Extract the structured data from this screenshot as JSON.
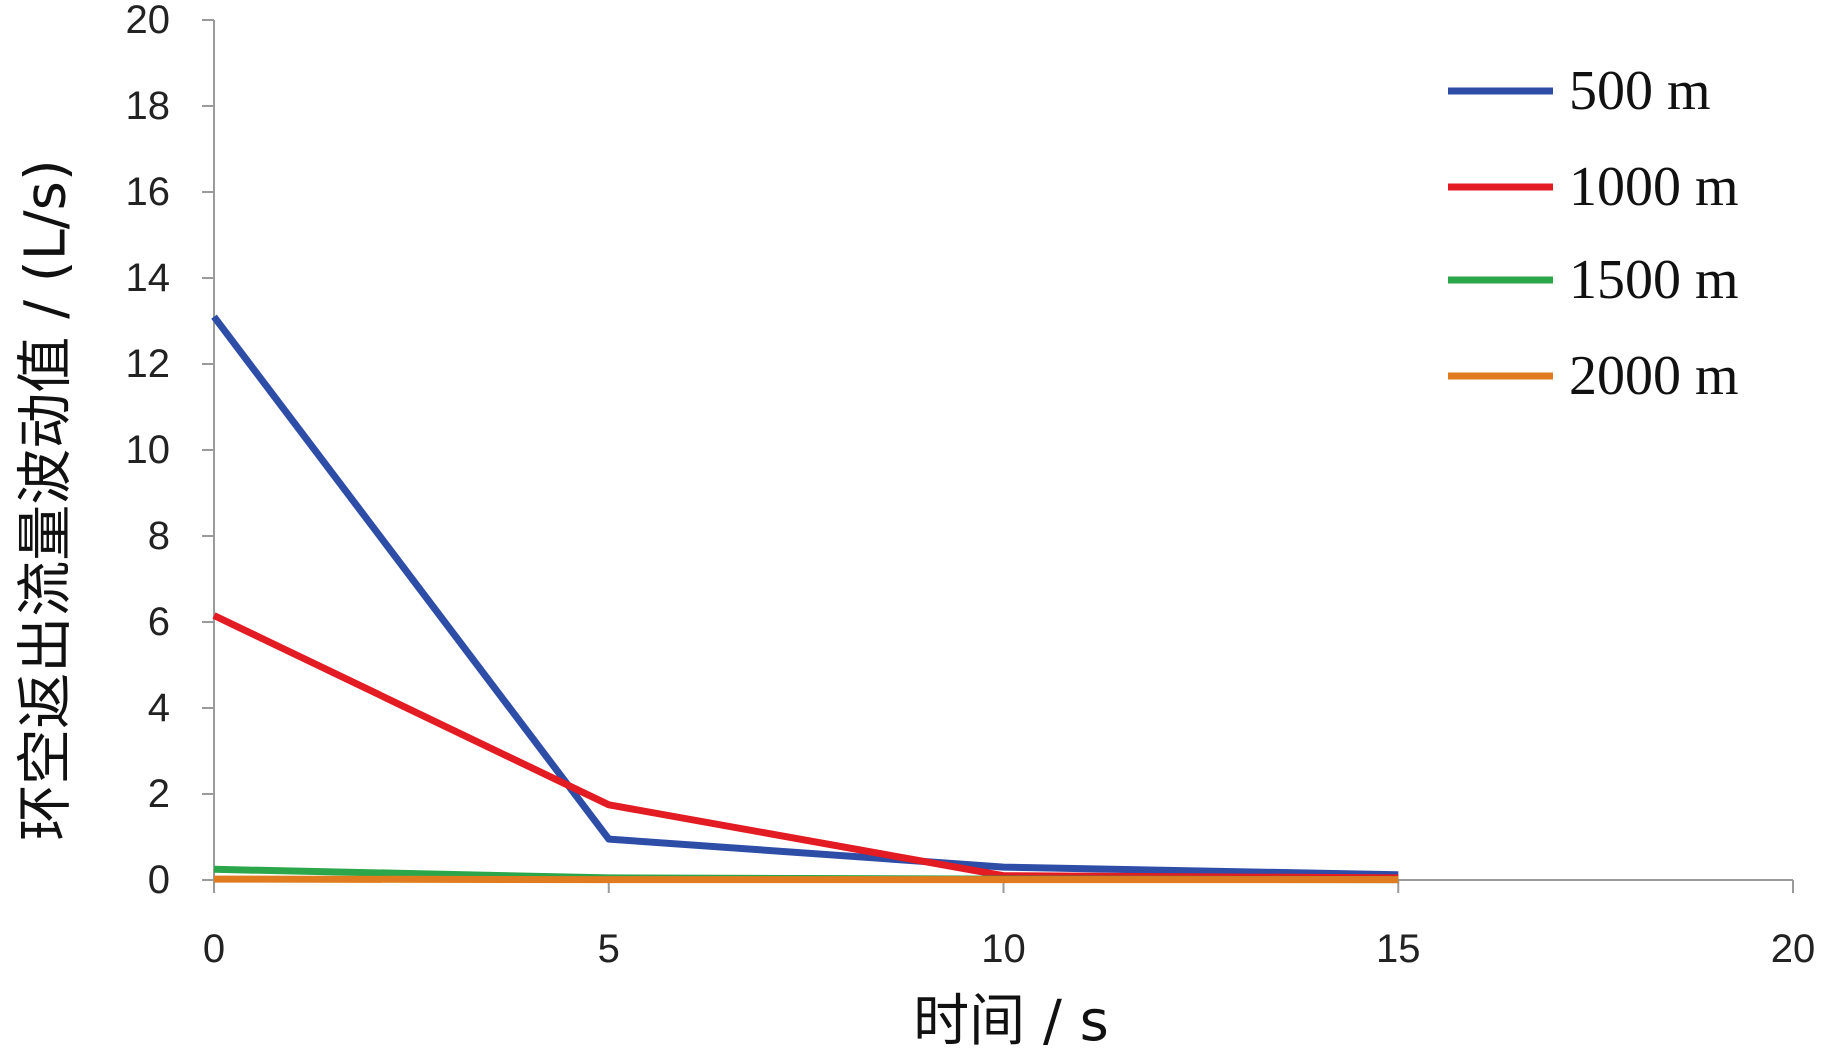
{
  "chart_data": {
    "type": "line",
    "title": "",
    "xlabel": "时间 / s",
    "ylabel": "环空返出流量波动值 / (L/s)",
    "xlim": [
      0,
      20
    ],
    "ylim": [
      0,
      20
    ],
    "xticks": [
      0,
      5,
      10,
      15,
      20
    ],
    "yticks": [
      0,
      2,
      4,
      6,
      8,
      10,
      12,
      14,
      16,
      18,
      20
    ],
    "grid": false,
    "legend": "top-right",
    "series": [
      {
        "name": "500 m",
        "color": "#2E4DA7",
        "x": [
          0,
          5,
          10,
          15
        ],
        "y": [
          13.1,
          0.95,
          0.3,
          0.12
        ]
      },
      {
        "name": "1000 m",
        "color": "#E31B23",
        "x": [
          0,
          5,
          10,
          15
        ],
        "y": [
          6.15,
          1.75,
          0.1,
          0.05
        ]
      },
      {
        "name": "1500 m",
        "color": "#2CA64A",
        "x": [
          0,
          5,
          10,
          15
        ],
        "y": [
          0.25,
          0.05,
          0.02,
          0.01
        ]
      },
      {
        "name": "2000 m",
        "color": "#E07B1F",
        "x": [
          0,
          5,
          10,
          15
        ],
        "y": [
          0.02,
          0.01,
          0.01,
          0.01
        ]
      }
    ]
  }
}
